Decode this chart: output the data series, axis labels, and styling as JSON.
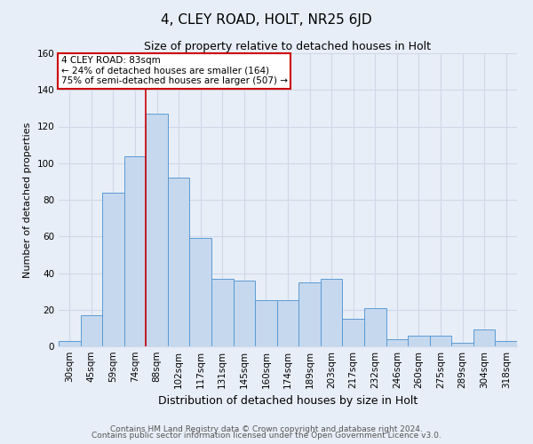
{
  "title": "4, CLEY ROAD, HOLT, NR25 6JD",
  "subtitle": "Size of property relative to detached houses in Holt",
  "xlabel": "Distribution of detached houses by size in Holt",
  "ylabel": "Number of detached properties",
  "categories": [
    "30sqm",
    "45sqm",
    "59sqm",
    "74sqm",
    "88sqm",
    "102sqm",
    "117sqm",
    "131sqm",
    "145sqm",
    "160sqm",
    "174sqm",
    "189sqm",
    "203sqm",
    "217sqm",
    "232sqm",
    "246sqm",
    "260sqm",
    "275sqm",
    "289sqm",
    "304sqm",
    "318sqm"
  ],
  "values": [
    3,
    17,
    84,
    104,
    127,
    92,
    59,
    37,
    36,
    25,
    25,
    35,
    37,
    15,
    21,
    4,
    6,
    6,
    2,
    9,
    3
  ],
  "bar_color": "#c5d8ee",
  "bar_edge_color": "#5b9bd5",
  "background_color": "#e8eef7",
  "grid_color": "#d0d8e8",
  "vline_color": "#cc0000",
  "annotation_text": "4 CLEY ROAD: 83sqm\n← 24% of detached houses are smaller (164)\n75% of semi-detached houses are larger (507) →",
  "annotation_box_color": "#ffffff",
  "annotation_box_edge": "#cc0000",
  "footer_line1": "Contains HM Land Registry data © Crown copyright and database right 2024.",
  "footer_line2": "Contains public sector information licensed under the Open Government Licence v3.0.",
  "ylim": [
    0,
    160
  ],
  "title_fontsize": 11,
  "subtitle_fontsize": 9,
  "xlabel_fontsize": 9,
  "ylabel_fontsize": 8,
  "tick_fontsize": 7.5,
  "footer_fontsize": 6.5,
  "annotation_fontsize": 7.5,
  "vline_bar_index": 4,
  "n_categories": 21
}
